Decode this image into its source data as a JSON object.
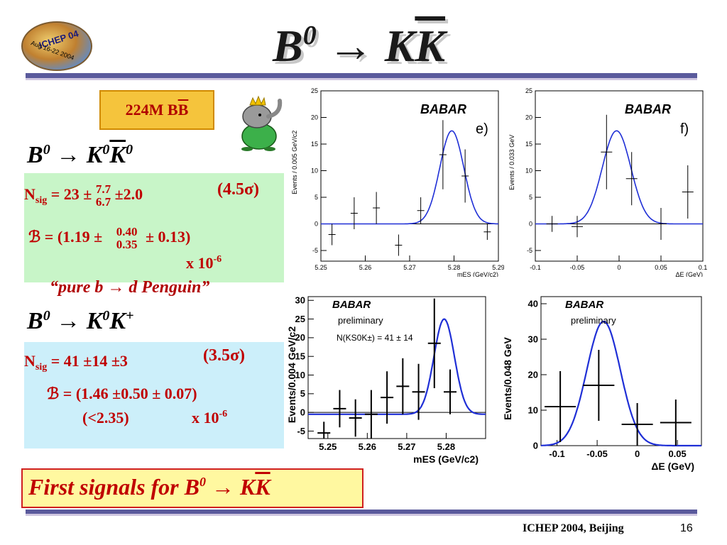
{
  "header": {
    "title": "B0 → KK̄",
    "logo_line1": "ICHEP 04",
    "logo_line2": "Aug 16-22 2004"
  },
  "badge": {
    "text": "224M BB̄"
  },
  "channel1": {
    "decay": "B0 → K0K̄0",
    "nsig_label": "Nsig = 23 ±",
    "nsig_err_up": "7.7",
    "nsig_err_down": "6.7",
    "nsig_sys": "±2.0",
    "significance": "(4.5σ)",
    "bf_prefix": "ℬ = (1.19 ±",
    "bf_err_up": "0.40",
    "bf_err_down": "0.35",
    "bf_sys": "± 0.13)",
    "bf_scale": "x 10-6",
    "note": "“pure b → d Penguin”"
  },
  "channel2": {
    "decay": "B0 → K0K+",
    "nsig_line": "Nsig = 41 ±14 ±3",
    "significance": "(3.5σ)",
    "bf_line": "ℬ = (1.46 ±0.50 ± 0.07)",
    "ul": "(<2.35)",
    "bf_scale": "x 10-6"
  },
  "conclusion": {
    "text": "First signals for B0 → KK̄"
  },
  "footer": {
    "conference": "ICHEP 2004, Beijing",
    "page": "16"
  },
  "chart_data": [
    {
      "type": "scatter",
      "panel_label": "e)",
      "logo": "BABAR",
      "xlabel": "mES (GeV/c2)",
      "ylabel": "Events / 0.005 GeV/c2",
      "xlim": [
        5.25,
        5.29
      ],
      "ylim": [
        -7,
        25
      ],
      "x_ticks": [
        5.25,
        5.26,
        5.27,
        5.28,
        5.29
      ],
      "y_ticks": [
        -5,
        0,
        5,
        10,
        15,
        20,
        25
      ],
      "points": [
        {
          "x": 5.2525,
          "y": -2.0,
          "yerr": 2.0
        },
        {
          "x": 5.2575,
          "y": 2.0,
          "yerr": 3.0
        },
        {
          "x": 5.2625,
          "y": 3.0,
          "yerr": 3.0
        },
        {
          "x": 5.2675,
          "y": -4.0,
          "yerr": 2.0
        },
        {
          "x": 5.2725,
          "y": 2.5,
          "yerr": 2.5
        },
        {
          "x": 5.2775,
          "y": 13.0,
          "yerr": 6.5
        },
        {
          "x": 5.2825,
          "y": 9.0,
          "yerr": 5.0
        },
        {
          "x": 5.2875,
          "y": -1.5,
          "yerr": 1.5
        }
      ],
      "fit": {
        "peak": 17.5,
        "mean": 5.2795,
        "sigma": 0.0027,
        "baseline": 0
      }
    },
    {
      "type": "scatter",
      "panel_label": "f)",
      "logo": "BABAR",
      "xlabel": "ΔE (GeV)",
      "ylabel": "Events / 0.033 GeV",
      "xlim": [
        -0.1,
        0.1
      ],
      "ylim": [
        -7,
        25
      ],
      "x_ticks": [
        -0.1,
        -0.05,
        0,
        0.05,
        0.1
      ],
      "y_ticks": [
        -5,
        0,
        5,
        10,
        15,
        20,
        25
      ],
      "points": [
        {
          "x": -0.08,
          "y": 0.0,
          "yerr": 1.5
        },
        {
          "x": -0.05,
          "y": -0.5,
          "yerr": 2.0
        },
        {
          "x": -0.015,
          "y": 13.5,
          "yerr": 7.0
        },
        {
          "x": 0.015,
          "y": 8.5,
          "yerr": 5.0
        },
        {
          "x": 0.05,
          "y": 0.0,
          "yerr": 3.0
        },
        {
          "x": 0.082,
          "y": 6.0,
          "yerr": 5.0
        }
      ],
      "fit": {
        "peak": 17.5,
        "mean": -0.003,
        "sigma": 0.017,
        "baseline": 0
      }
    },
    {
      "type": "scatter",
      "logo": "BABAR",
      "label": "preliminary",
      "annotation": "N(KS0K±) = 41 ± 14",
      "xlabel": "mES (GeV/c2)",
      "ylabel": "Events/0.004 GeV/c2",
      "xlim": [
        5.245,
        5.29
      ],
      "ylim": [
        -7,
        31
      ],
      "x_ticks": [
        5.25,
        5.26,
        5.27,
        5.28
      ],
      "y_ticks": [
        -5,
        0,
        5,
        10,
        15,
        20,
        25,
        30
      ],
      "points": [
        {
          "x": 5.249,
          "y": -5.5,
          "yerr": 3.0
        },
        {
          "x": 5.253,
          "y": 1.0,
          "yerr": 5.0
        },
        {
          "x": 5.257,
          "y": -1.5,
          "yerr": 5.0
        },
        {
          "x": 5.261,
          "y": -0.5,
          "yerr": 6.5
        },
        {
          "x": 5.265,
          "y": 4.0,
          "yerr": 7.0
        },
        {
          "x": 5.269,
          "y": 7.0,
          "yerr": 7.5
        },
        {
          "x": 5.273,
          "y": 5.5,
          "yerr": 7.5
        },
        {
          "x": 5.277,
          "y": 18.5,
          "yerr": 12.0
        },
        {
          "x": 5.281,
          "y": 5.5,
          "yerr": 6.0
        }
      ],
      "fit": {
        "peak": 25.5,
        "mean": 5.2795,
        "sigma": 0.0026,
        "baseline": -0.5
      }
    },
    {
      "type": "scatter",
      "logo": "BABAR",
      "label": "preliminary",
      "xlabel": "ΔE (GeV)",
      "ylabel": "Events/0.048 GeV",
      "xlim": [
        -0.12,
        0.08
      ],
      "ylim": [
        0,
        42
      ],
      "x_ticks": [
        -0.1,
        -0.05,
        0,
        0.05
      ],
      "y_ticks": [
        0,
        10,
        20,
        30,
        40
      ],
      "points": [
        {
          "x": -0.096,
          "y": 11.0,
          "yerr": 10.0
        },
        {
          "x": -0.048,
          "y": 17.0,
          "yerr": 10.0
        },
        {
          "x": 0.0,
          "y": 6.0,
          "yerr": 6.0
        },
        {
          "x": 0.048,
          "y": 6.5,
          "yerr": 6.5
        }
      ],
      "fit": {
        "peak": 35.0,
        "mean": -0.042,
        "sigma": 0.021,
        "baseline": 0
      }
    }
  ]
}
